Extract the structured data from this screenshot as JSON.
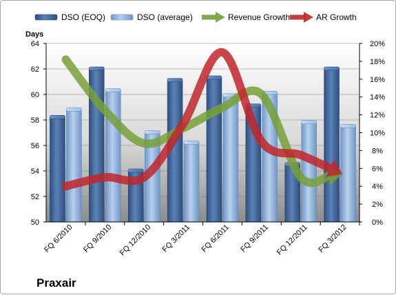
{
  "company_label": "Praxair",
  "chart_data": {
    "type": "bar",
    "ylabel": "Days",
    "categories": [
      "FQ 6/2010",
      "FQ 9/2010",
      "FQ 12/2010",
      "FQ 3/2011",
      "FQ 6/2011",
      "FQ 9/2011",
      "FQ 12/2011",
      "FQ 3/2012"
    ],
    "ylim": [
      50,
      64
    ],
    "yticks": [
      "50",
      "52",
      "54",
      "56",
      "58",
      "60",
      "62",
      "64"
    ],
    "y2lim": [
      0,
      20
    ],
    "y2ticks": [
      "0%",
      "2%",
      "4%",
      "6%",
      "8%",
      "10%",
      "12%",
      "14%",
      "16%",
      "18%",
      "20%"
    ],
    "legend_position": "top",
    "series": [
      {
        "name": "DSO (EOQ)",
        "kind": "bar",
        "axis": "left",
        "color": "#3f6aa3",
        "values": [
          58.2,
          62.0,
          54.0,
          61.1,
          61.3,
          59.1,
          54.5,
          62.0
        ]
      },
      {
        "name": "DSO (average)",
        "kind": "bar",
        "axis": "left",
        "color": "#8eb4e3",
        "values": [
          58.8,
          60.3,
          57.0,
          56.2,
          59.9,
          60.1,
          57.8,
          57.5
        ]
      },
      {
        "name": "Revenue Growth",
        "kind": "arrow-line",
        "axis": "right",
        "color": "#77a03a",
        "values": [
          18.2,
          12.5,
          8.8,
          10.5,
          12.8,
          14.3,
          5.0,
          5.3
        ]
      },
      {
        "name": "AR Growth",
        "kind": "arrow-line",
        "axis": "right",
        "color": "#c0262c",
        "values": [
          4.0,
          5.0,
          5.0,
          11.0,
          19.0,
          9.0,
          7.5,
          5.5
        ]
      }
    ]
  }
}
